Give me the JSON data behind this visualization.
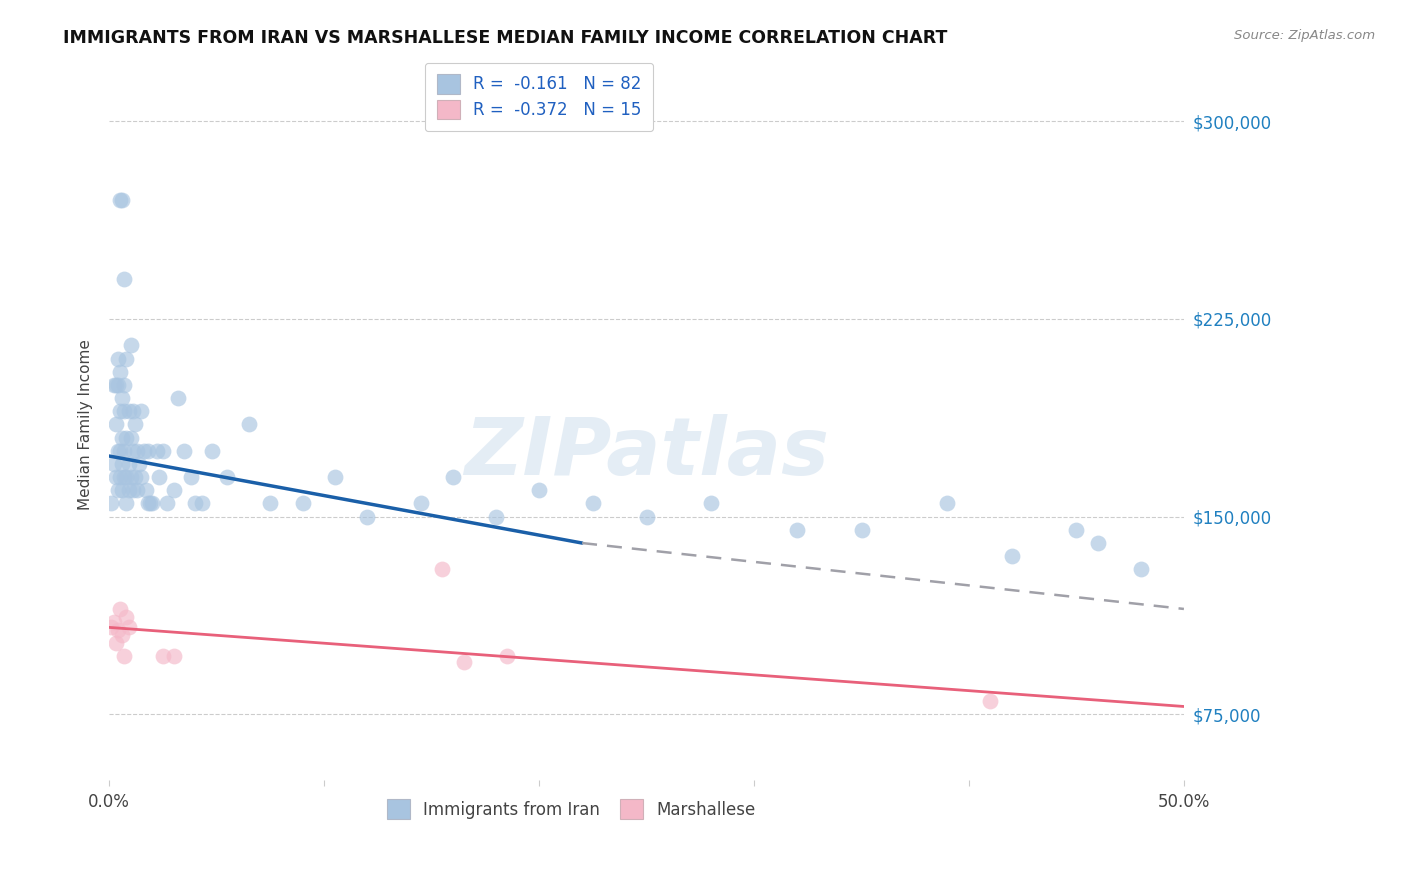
{
  "title": "IMMIGRANTS FROM IRAN VS MARSHALLESE MEDIAN FAMILY INCOME CORRELATION CHART",
  "source": "Source: ZipAtlas.com",
  "ylabel": "Median Family Income",
  "x_min": 0.0,
  "x_max": 0.5,
  "y_min": 50000,
  "y_max": 320000,
  "x_ticks": [
    0.0,
    0.1,
    0.2,
    0.3,
    0.4,
    0.5
  ],
  "x_tick_labels": [
    "0.0%",
    "",
    "",
    "",
    "",
    "50.0%"
  ],
  "y_ticks": [
    75000,
    150000,
    225000,
    300000
  ],
  "y_tick_labels": [
    "$75,000",
    "$150,000",
    "$225,000",
    "$300,000"
  ],
  "legend1_label": "R =  -0.161   N = 82",
  "legend2_label": "R =  -0.372   N = 15",
  "legend_color1": "#a8c4e0",
  "legend_color2": "#f4b8c8",
  "iran_color": "#a8c4e0",
  "marsh_color": "#f4b8c8",
  "iran_line_color": "#1a5fa8",
  "marsh_line_color": "#e8607a",
  "dashed_line_color": "#a0a0a8",
  "watermark_text": "ZIPatlas",
  "iran_x": [
    0.001,
    0.002,
    0.002,
    0.003,
    0.003,
    0.003,
    0.004,
    0.004,
    0.004,
    0.004,
    0.005,
    0.005,
    0.005,
    0.005,
    0.005,
    0.006,
    0.006,
    0.006,
    0.006,
    0.006,
    0.007,
    0.007,
    0.007,
    0.007,
    0.007,
    0.008,
    0.008,
    0.008,
    0.008,
    0.009,
    0.009,
    0.009,
    0.01,
    0.01,
    0.01,
    0.011,
    0.011,
    0.011,
    0.012,
    0.012,
    0.013,
    0.013,
    0.014,
    0.015,
    0.015,
    0.016,
    0.017,
    0.018,
    0.018,
    0.019,
    0.02,
    0.022,
    0.023,
    0.025,
    0.027,
    0.03,
    0.032,
    0.035,
    0.038,
    0.04,
    0.043,
    0.048,
    0.055,
    0.065,
    0.075,
    0.09,
    0.105,
    0.12,
    0.145,
    0.16,
    0.18,
    0.2,
    0.225,
    0.25,
    0.28,
    0.32,
    0.35,
    0.39,
    0.42,
    0.45,
    0.46,
    0.48
  ],
  "iran_y": [
    155000,
    170000,
    200000,
    165000,
    185000,
    200000,
    160000,
    175000,
    200000,
    210000,
    165000,
    175000,
    190000,
    205000,
    270000,
    160000,
    170000,
    180000,
    195000,
    270000,
    165000,
    175000,
    190000,
    200000,
    240000,
    155000,
    165000,
    180000,
    210000,
    160000,
    170000,
    190000,
    165000,
    180000,
    215000,
    160000,
    175000,
    190000,
    165000,
    185000,
    160000,
    175000,
    170000,
    165000,
    190000,
    175000,
    160000,
    155000,
    175000,
    155000,
    155000,
    175000,
    165000,
    175000,
    155000,
    160000,
    195000,
    175000,
    165000,
    155000,
    155000,
    175000,
    165000,
    185000,
    155000,
    155000,
    165000,
    150000,
    155000,
    165000,
    150000,
    160000,
    155000,
    150000,
    155000,
    145000,
    145000,
    155000,
    135000,
    145000,
    140000,
    130000
  ],
  "marsh_x": [
    0.001,
    0.002,
    0.003,
    0.004,
    0.005,
    0.006,
    0.007,
    0.008,
    0.009,
    0.025,
    0.03,
    0.155,
    0.165,
    0.185,
    0.41
  ],
  "marsh_y": [
    108000,
    110000,
    102000,
    107000,
    115000,
    105000,
    97000,
    112000,
    108000,
    97000,
    97000,
    130000,
    95000,
    97000,
    80000
  ],
  "iran_trend_x": [
    0.0,
    0.22
  ],
  "iran_trend_y": [
    173000,
    140000
  ],
  "dashed_trend_x": [
    0.22,
    0.5
  ],
  "dashed_trend_y": [
    140000,
    115000
  ],
  "marsh_trend_x": [
    0.0,
    0.5
  ],
  "marsh_trend_y": [
    108000,
    78000
  ]
}
